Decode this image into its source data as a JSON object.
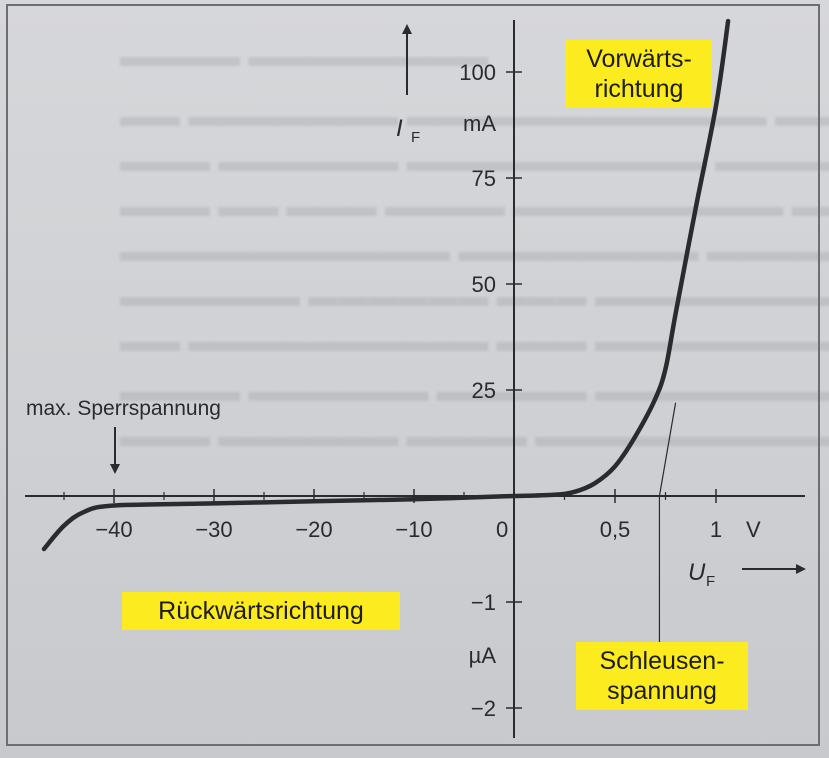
{
  "chart_data": {
    "type": "line",
    "x_axis": {
      "label": "U",
      "label_sub": "F",
      "unit": "V",
      "negative_ticks": [
        -40,
        -30,
        -20,
        -10,
        0
      ],
      "positive_tick_labels": [
        "0,5",
        "1"
      ]
    },
    "y_axis": {
      "label": "I",
      "label_sub": "F",
      "upper_unit": "mA",
      "upper_ticks": [
        25,
        50,
        75,
        100
      ],
      "lower_unit": "µA",
      "lower_ticks": [
        -1,
        -2
      ]
    },
    "series": [
      {
        "forward_points_V_mA": [
          [
            0,
            0
          ],
          [
            0.2,
            0.3
          ],
          [
            0.3,
            1
          ],
          [
            0.4,
            3
          ],
          [
            0.5,
            7
          ],
          [
            0.6,
            14
          ],
          [
            0.7,
            23
          ],
          [
            0.75,
            30
          ],
          [
            0.8,
            43
          ],
          [
            0.9,
            68
          ],
          [
            1.0,
            92
          ],
          [
            1.06,
            112
          ]
        ],
        "reverse_points_V_uA": [
          [
            0,
            0
          ],
          [
            -10,
            -0.03
          ],
          [
            -20,
            -0.05
          ],
          [
            -30,
            -0.07
          ],
          [
            -40,
            -0.09
          ],
          [
            -43,
            -0.15
          ],
          [
            -45,
            -0.28
          ],
          [
            -47,
            -0.5
          ]
        ]
      }
    ],
    "tangent": {
      "from_V_mA": [
        0.72,
        0
      ],
      "to_V_mA": [
        0.8,
        22
      ]
    }
  },
  "annotations": {
    "max_reverse": "max. Sperrspannung",
    "forward_region_line1": "Vorwärts-",
    "forward_region_line2": "richtung",
    "reverse_region": "Rückwärtsrichtung",
    "threshold_line1": "Schleusen-",
    "threshold_line2": "spannung"
  }
}
